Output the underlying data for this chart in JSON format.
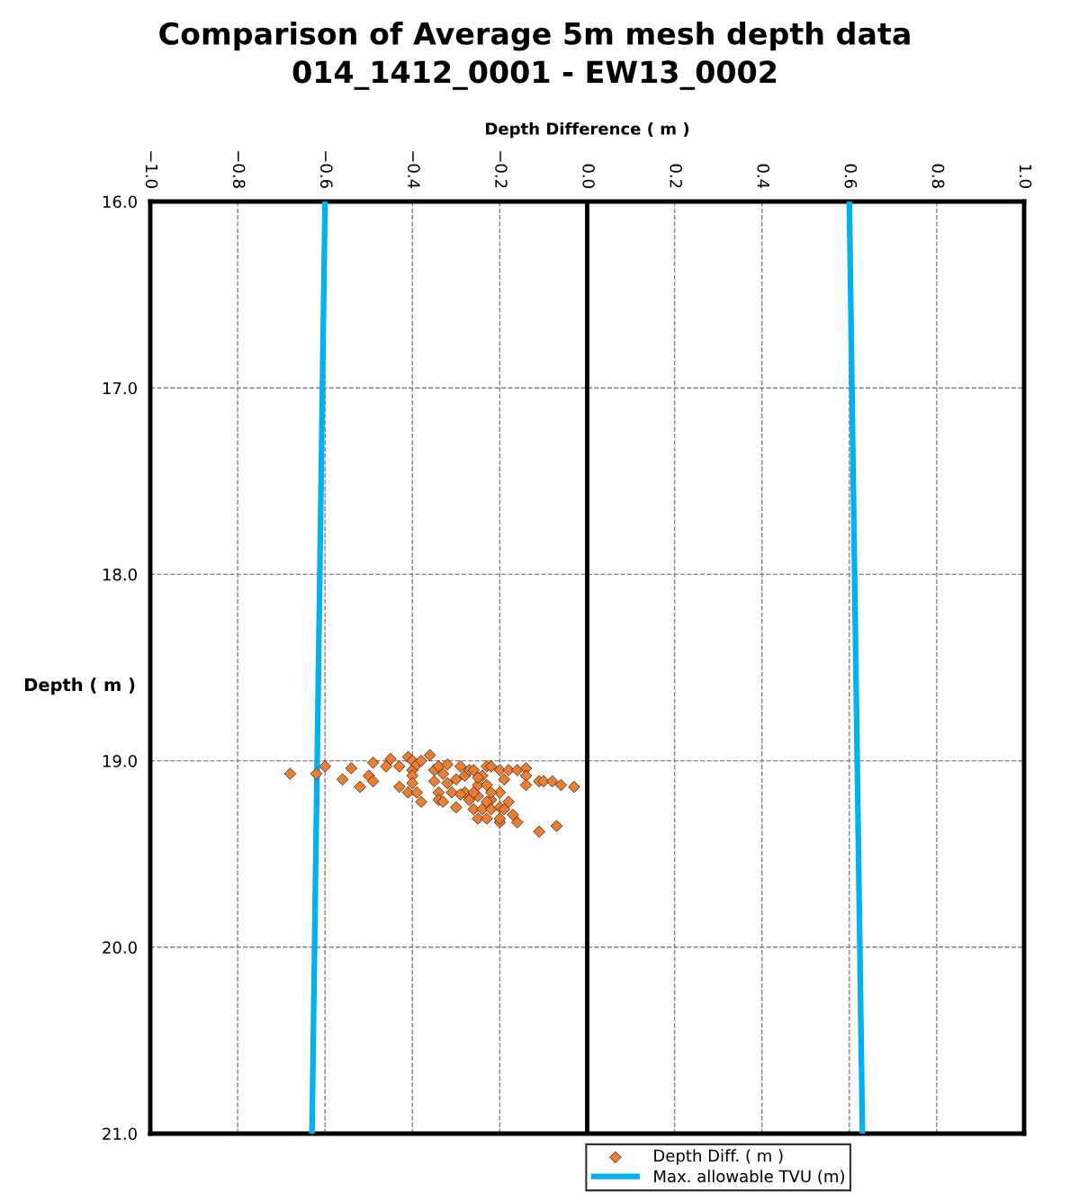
{
  "chart_data": {
    "type": "scatter",
    "title": "Comparison of Average 5m mesh depth data\n014_1412_0001 - EW13_0002",
    "xlabel": "Depth Difference ( m )",
    "ylabel": "Depth ( m )",
    "xlim": [
      -1,
      1
    ],
    "ylim": [
      21,
      16
    ],
    "xticks": [
      {
        "value": -1,
        "label": "−1.0"
      },
      {
        "value": -0.8,
        "label": "−0.8"
      },
      {
        "value": -0.6,
        "label": "−0.6"
      },
      {
        "value": -0.4,
        "label": "−0.4"
      },
      {
        "value": -0.2,
        "label": "−0.2"
      },
      {
        "value": 0,
        "label": "0.0"
      },
      0.2,
      0.4,
      0.6,
      0.8,
      {
        "value": 1,
        "label": "1.0"
      }
    ],
    "yticks": [
      {
        "value": 16,
        "label": "16.0"
      },
      {
        "value": 17,
        "label": "17.0"
      },
      {
        "value": 18,
        "label": "18.0"
      },
      {
        "value": 19,
        "label": "19.0"
      },
      {
        "value": 20,
        "label": "20.0"
      },
      {
        "value": 21,
        "label": "21.0"
      }
    ],
    "grid": true,
    "legend": "bottom",
    "ref_lines": [
      {
        "axis": "x",
        "value": 0,
        "color": "#000000"
      }
    ],
    "series": [
      {
        "name": "Depth Diff. ( m )",
        "color": "#ed7d31",
        "marker": "diamond",
        "x": [
          -0.68,
          -0.62,
          -0.6,
          -0.56,
          -0.54,
          -0.52,
          -0.5,
          -0.49,
          -0.49,
          -0.46,
          -0.45,
          -0.43,
          -0.43,
          -0.41,
          -0.41,
          -0.4,
          -0.4,
          -0.4,
          -0.4,
          -0.39,
          -0.39,
          -0.38,
          -0.38,
          -0.36,
          -0.35,
          -0.35,
          -0.34,
          -0.34,
          -0.34,
          -0.33,
          -0.33,
          -0.32,
          -0.32,
          -0.31,
          -0.3,
          -0.3,
          -0.29,
          -0.28,
          -0.28,
          -0.27,
          -0.27,
          -0.26,
          -0.26,
          -0.25,
          -0.25,
          -0.25,
          -0.24,
          -0.24,
          -0.23,
          -0.23,
          -0.23,
          -0.22,
          -0.22,
          -0.22,
          -0.2,
          -0.2,
          -0.2,
          -0.2,
          -0.19,
          -0.18,
          -0.18,
          -0.17,
          -0.16,
          -0.16,
          -0.14,
          -0.14,
          -0.14,
          -0.11,
          -0.11,
          -0.1,
          -0.08,
          -0.07,
          -0.06,
          -0.03,
          -0.25,
          -0.22,
          -0.23,
          -0.26,
          -0.2,
          -0.19,
          -0.29
        ],
        "values": [
          19.07,
          19.07,
          19.03,
          19.1,
          19.04,
          19.14,
          19.08,
          19.01,
          19.11,
          19.03,
          18.99,
          19.03,
          19.14,
          18.98,
          19.17,
          19.0,
          19.05,
          19.08,
          19.12,
          19.17,
          19.02,
          19.22,
          19.0,
          18.97,
          19.05,
          19.11,
          19.03,
          19.17,
          19.21,
          19.07,
          19.22,
          19.02,
          19.12,
          19.17,
          19.25,
          19.1,
          19.03,
          19.08,
          19.17,
          19.05,
          19.21,
          19.26,
          19.05,
          19.13,
          19.31,
          19.19,
          19.26,
          19.08,
          19.13,
          19.03,
          19.31,
          19.03,
          19.21,
          19.26,
          19.05,
          19.17,
          19.33,
          19.31,
          19.1,
          19.22,
          19.05,
          19.29,
          19.05,
          19.33,
          19.04,
          19.08,
          19.13,
          19.11,
          19.38,
          19.11,
          19.11,
          19.35,
          19.13,
          19.14,
          19.09,
          19.17,
          19.22,
          19.17,
          19.25,
          19.26,
          19.18
        ]
      },
      {
        "name": "Max. allowable TVU (m)",
        "type": "line",
        "color": "#00b0f0",
        "marker": "none",
        "x": [
          -0.6,
          -0.63,
          null,
          0.6,
          0.63
        ],
        "values": [
          16,
          21,
          null,
          16,
          21
        ]
      }
    ]
  }
}
